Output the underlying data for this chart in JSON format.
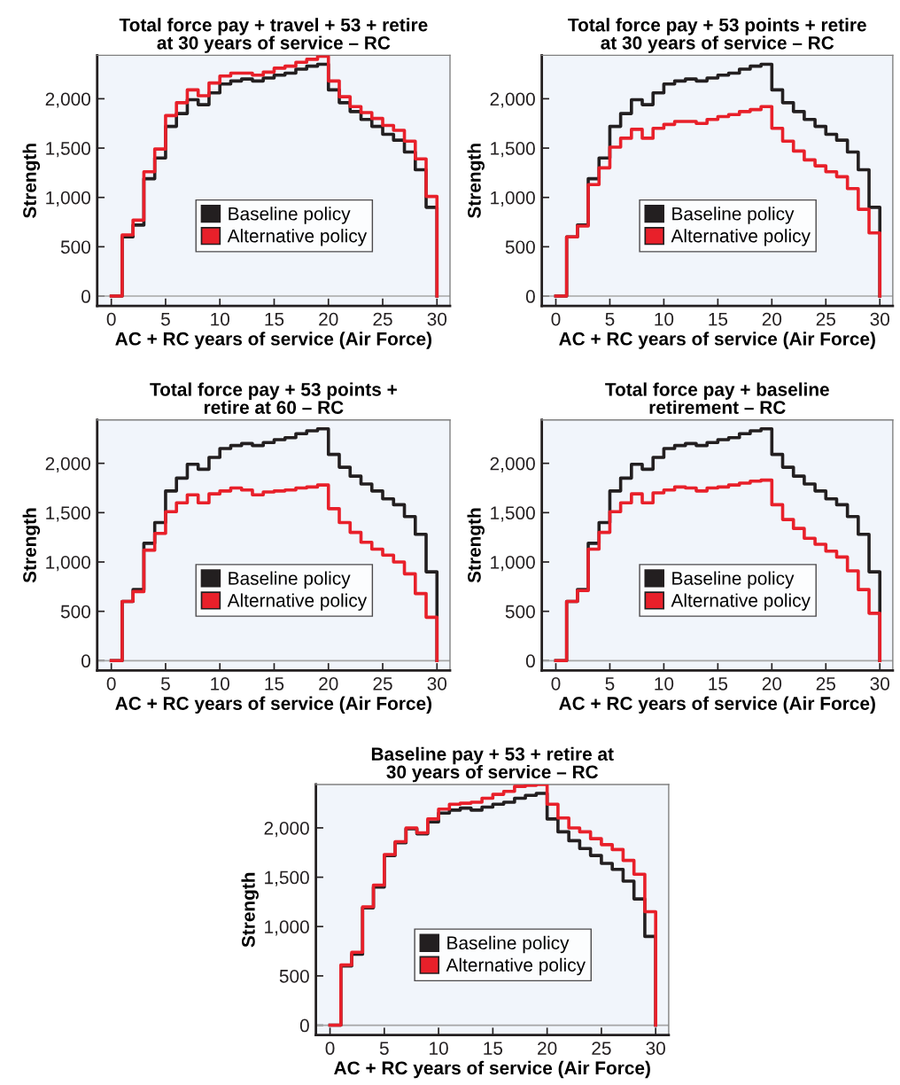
{
  "chart_data": [
    {
      "type": "step",
      "title": "Total force pay + travel + 53 + retire\nat 30 years of service – RC",
      "xlabel": "AC + RC years of service (Air Force)",
      "ylabel": "Strength",
      "x": [
        0,
        1,
        2,
        3,
        4,
        5,
        6,
        7,
        8,
        9,
        10,
        11,
        12,
        13,
        14,
        15,
        16,
        17,
        18,
        19,
        20,
        21,
        22,
        23,
        24,
        25,
        26,
        27,
        28,
        29,
        30
      ],
      "xlim": [
        -1.3,
        31.2
      ],
      "xticks": [
        0,
        5,
        10,
        15,
        20,
        25,
        30
      ],
      "ylim": [
        -100,
        2440
      ],
      "yticks": [
        0,
        500,
        {
          "value": 1000,
          "label": "1,000"
        },
        {
          "value": 1500,
          "label": "1,500"
        },
        {
          "value": 2000,
          "label": "2,000"
        }
      ],
      "legend": "bottom",
      "grid": false,
      "ref_lines": [
        {
          "axis": "y",
          "value": 0,
          "color": "#a6a6a6"
        }
      ],
      "series": [
        {
          "name": "Baseline policy",
          "color": "#231f20",
          "values": [
            0,
            600,
            720,
            1190,
            1400,
            1720,
            1850,
            1990,
            1940,
            2060,
            2150,
            2180,
            2200,
            2180,
            2210,
            2240,
            2260,
            2300,
            2330,
            2350,
            2090,
            1960,
            1870,
            1790,
            1720,
            1640,
            1580,
            1460,
            1280,
            900,
            0
          ]
        },
        {
          "name": "Alternative policy",
          "color": "#e8202a",
          "values": [
            0,
            620,
            770,
            1260,
            1490,
            1830,
            1960,
            2090,
            2030,
            2160,
            2230,
            2260,
            2260,
            2240,
            2270,
            2310,
            2330,
            2370,
            2400,
            2430,
            2180,
            2020,
            1920,
            1860,
            1800,
            1730,
            1680,
            1570,
            1390,
            1010,
            0
          ]
        }
      ]
    },
    {
      "type": "step",
      "title": "Total force pay + 53 points + retire\nat 30 years of service – RC",
      "xlabel": "AC + RC years of service (Air Force)",
      "ylabel": "Strength",
      "x": [
        0,
        1,
        2,
        3,
        4,
        5,
        6,
        7,
        8,
        9,
        10,
        11,
        12,
        13,
        14,
        15,
        16,
        17,
        18,
        19,
        20,
        21,
        22,
        23,
        24,
        25,
        26,
        27,
        28,
        29,
        30
      ],
      "xlim": [
        -1.3,
        31.2
      ],
      "xticks": [
        0,
        5,
        10,
        15,
        20,
        25,
        30
      ],
      "ylim": [
        -100,
        2440
      ],
      "yticks": [
        0,
        500,
        {
          "value": 1000,
          "label": "1,000"
        },
        {
          "value": 1500,
          "label": "1,500"
        },
        {
          "value": 2000,
          "label": "2,000"
        }
      ],
      "legend": "bottom",
      "grid": false,
      "ref_lines": [
        {
          "axis": "y",
          "value": 0,
          "color": "#a6a6a6"
        }
      ],
      "series": [
        {
          "name": "Baseline policy",
          "color": "#231f20",
          "values": [
            0,
            600,
            720,
            1190,
            1400,
            1720,
            1850,
            1990,
            1940,
            2060,
            2150,
            2180,
            2200,
            2180,
            2210,
            2240,
            2260,
            2300,
            2330,
            2350,
            2090,
            1960,
            1870,
            1790,
            1720,
            1640,
            1580,
            1460,
            1280,
            900,
            0
          ]
        },
        {
          "name": "Alternative policy",
          "color": "#e8202a",
          "values": [
            0,
            600,
            710,
            1130,
            1300,
            1510,
            1600,
            1690,
            1600,
            1700,
            1740,
            1770,
            1770,
            1750,
            1790,
            1820,
            1840,
            1870,
            1890,
            1920,
            1700,
            1570,
            1470,
            1380,
            1320,
            1260,
            1210,
            1090,
            880,
            640,
            0
          ]
        }
      ]
    },
    {
      "type": "step",
      "title": "Total force pay + 53 points +\nretire at 60 – RC",
      "xlabel": "AC + RC years of service (Air Force)",
      "ylabel": "Strength",
      "x": [
        0,
        1,
        2,
        3,
        4,
        5,
        6,
        7,
        8,
        9,
        10,
        11,
        12,
        13,
        14,
        15,
        16,
        17,
        18,
        19,
        20,
        21,
        22,
        23,
        24,
        25,
        26,
        27,
        28,
        29,
        30
      ],
      "xlim": [
        -1.3,
        31.2
      ],
      "xticks": [
        0,
        5,
        10,
        15,
        20,
        25,
        30
      ],
      "ylim": [
        -100,
        2440
      ],
      "yticks": [
        0,
        500,
        {
          "value": 1000,
          "label": "1,000"
        },
        {
          "value": 1500,
          "label": "1,500"
        },
        {
          "value": 2000,
          "label": "2,000"
        }
      ],
      "legend": "bottom",
      "grid": false,
      "ref_lines": [
        {
          "axis": "y",
          "value": 0,
          "color": "#a6a6a6"
        }
      ],
      "series": [
        {
          "name": "Baseline policy",
          "color": "#231f20",
          "values": [
            0,
            600,
            720,
            1190,
            1400,
            1720,
            1850,
            1990,
            1940,
            2060,
            2150,
            2180,
            2200,
            2180,
            2210,
            2240,
            2260,
            2300,
            2330,
            2350,
            2090,
            1960,
            1870,
            1790,
            1720,
            1640,
            1580,
            1460,
            1280,
            900,
            0
          ]
        },
        {
          "name": "Alternative policy",
          "color": "#e8202a",
          "values": [
            0,
            600,
            700,
            1120,
            1290,
            1510,
            1600,
            1680,
            1600,
            1690,
            1720,
            1750,
            1730,
            1680,
            1710,
            1720,
            1730,
            1750,
            1760,
            1780,
            1540,
            1400,
            1300,
            1200,
            1130,
            1070,
            1000,
            880,
            680,
            440,
            0
          ]
        }
      ]
    },
    {
      "type": "step",
      "title": "Total force pay + baseline\nretirement – RC",
      "xlabel": "AC + RC years of service (Air Force)",
      "ylabel": "Strength",
      "x": [
        0,
        1,
        2,
        3,
        4,
        5,
        6,
        7,
        8,
        9,
        10,
        11,
        12,
        13,
        14,
        15,
        16,
        17,
        18,
        19,
        20,
        21,
        22,
        23,
        24,
        25,
        26,
        27,
        28,
        29,
        30
      ],
      "xlim": [
        -1.3,
        31.2
      ],
      "xticks": [
        0,
        5,
        10,
        15,
        20,
        25,
        30
      ],
      "ylim": [
        -100,
        2440
      ],
      "yticks": [
        0,
        500,
        {
          "value": 1000,
          "label": "1,000"
        },
        {
          "value": 1500,
          "label": "1,500"
        },
        {
          "value": 2000,
          "label": "2,000"
        }
      ],
      "legend": "bottom",
      "grid": false,
      "ref_lines": [
        {
          "axis": "y",
          "value": 0,
          "color": "#a6a6a6"
        }
      ],
      "series": [
        {
          "name": "Baseline policy",
          "color": "#231f20",
          "values": [
            0,
            600,
            720,
            1190,
            1400,
            1720,
            1850,
            1990,
            1940,
            2060,
            2150,
            2180,
            2200,
            2180,
            2210,
            2240,
            2260,
            2300,
            2330,
            2350,
            2090,
            1960,
            1870,
            1790,
            1720,
            1640,
            1580,
            1460,
            1280,
            900,
            0
          ]
        },
        {
          "name": "Alternative policy",
          "color": "#e8202a",
          "values": [
            0,
            600,
            710,
            1130,
            1300,
            1510,
            1600,
            1690,
            1600,
            1700,
            1730,
            1760,
            1750,
            1720,
            1750,
            1760,
            1780,
            1800,
            1820,
            1830,
            1580,
            1430,
            1340,
            1240,
            1180,
            1110,
            1050,
            910,
            720,
            480,
            0
          ]
        }
      ]
    },
    {
      "type": "step",
      "title": "Baseline pay + 53 + retire at\n30 years of service – RC",
      "xlabel": "AC + RC years of service (Air Force)",
      "ylabel": "Strength",
      "x": [
        0,
        1,
        2,
        3,
        4,
        5,
        6,
        7,
        8,
        9,
        10,
        11,
        12,
        13,
        14,
        15,
        16,
        17,
        18,
        19,
        20,
        21,
        22,
        23,
        24,
        25,
        26,
        27,
        28,
        29,
        30
      ],
      "xlim": [
        -1.3,
        31.2
      ],
      "xticks": [
        0,
        5,
        10,
        15,
        20,
        25,
        30
      ],
      "ylim": [
        -100,
        2440
      ],
      "yticks": [
        0,
        500,
        {
          "value": 1000,
          "label": "1,000"
        },
        {
          "value": 1500,
          "label": "1,500"
        },
        {
          "value": 2000,
          "label": "2,000"
        }
      ],
      "legend": "bottom",
      "grid": false,
      "ref_lines": [
        {
          "axis": "y",
          "value": 0,
          "color": "#a6a6a6"
        }
      ],
      "series": [
        {
          "name": "Baseline policy",
          "color": "#231f20",
          "values": [
            0,
            600,
            720,
            1190,
            1400,
            1720,
            1850,
            1990,
            1940,
            2060,
            2150,
            2180,
            2200,
            2180,
            2210,
            2240,
            2260,
            2300,
            2330,
            2350,
            2090,
            1960,
            1870,
            1790,
            1720,
            1640,
            1580,
            1460,
            1280,
            900,
            0
          ]
        },
        {
          "name": "Alternative policy",
          "color": "#e8202a",
          "values": [
            0,
            610,
            740,
            1200,
            1420,
            1730,
            1860,
            2000,
            1950,
            2090,
            2190,
            2240,
            2250,
            2260,
            2300,
            2340,
            2370,
            2420,
            2430,
            2440,
            2240,
            2100,
            2000,
            1960,
            1890,
            1830,
            1780,
            1670,
            1530,
            1150,
            0
          ]
        }
      ]
    }
  ]
}
